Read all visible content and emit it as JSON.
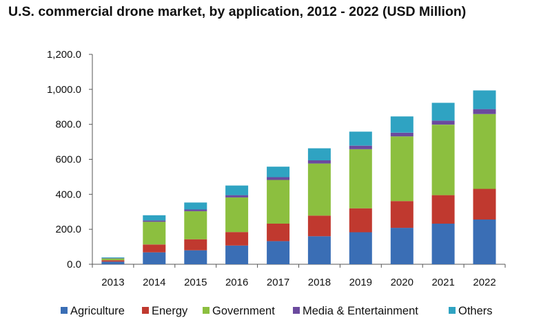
{
  "chart_data": {
    "type": "bar",
    "stacked": true,
    "title": "U.S. commercial drone market, by application, 2012 - 2022 (USD Million)",
    "xlabel": "",
    "ylabel": "",
    "categories": [
      "2013",
      "2014",
      "2015",
      "2016",
      "2017",
      "2018",
      "2019",
      "2020",
      "2021",
      "2022"
    ],
    "ylim": [
      0,
      1200
    ],
    "yticks": [
      0,
      200,
      400,
      600,
      800,
      1000,
      1200
    ],
    "ytick_labels": [
      "0.0",
      "200.0",
      "400.0",
      "600.0",
      "800.0",
      "1,000.0",
      "1,200.0"
    ],
    "legend_position": "bottom",
    "grid": false,
    "series": [
      {
        "name": "Agriculture",
        "color": "#3a6eb5",
        "values": [
          15,
          68,
          80,
          107,
          132,
          160,
          183,
          208,
          232,
          256
        ]
      },
      {
        "name": "Energy",
        "color": "#c0392f",
        "values": [
          8,
          45,
          63,
          77,
          100,
          118,
          137,
          153,
          163,
          175
        ]
      },
      {
        "name": "Government",
        "color": "#8cbf3f",
        "values": [
          10,
          130,
          160,
          198,
          250,
          298,
          338,
          370,
          403,
          428
        ]
      },
      {
        "name": "Media & Entertainment",
        "color": "#6b4a9e",
        "values": [
          2,
          7,
          10,
          13,
          16,
          18,
          20,
          21,
          23,
          28
        ]
      },
      {
        "name": "Others",
        "color": "#2fa3c2",
        "values": [
          4,
          30,
          40,
          55,
          60,
          69,
          80,
          93,
          102,
          107
        ]
      }
    ]
  }
}
